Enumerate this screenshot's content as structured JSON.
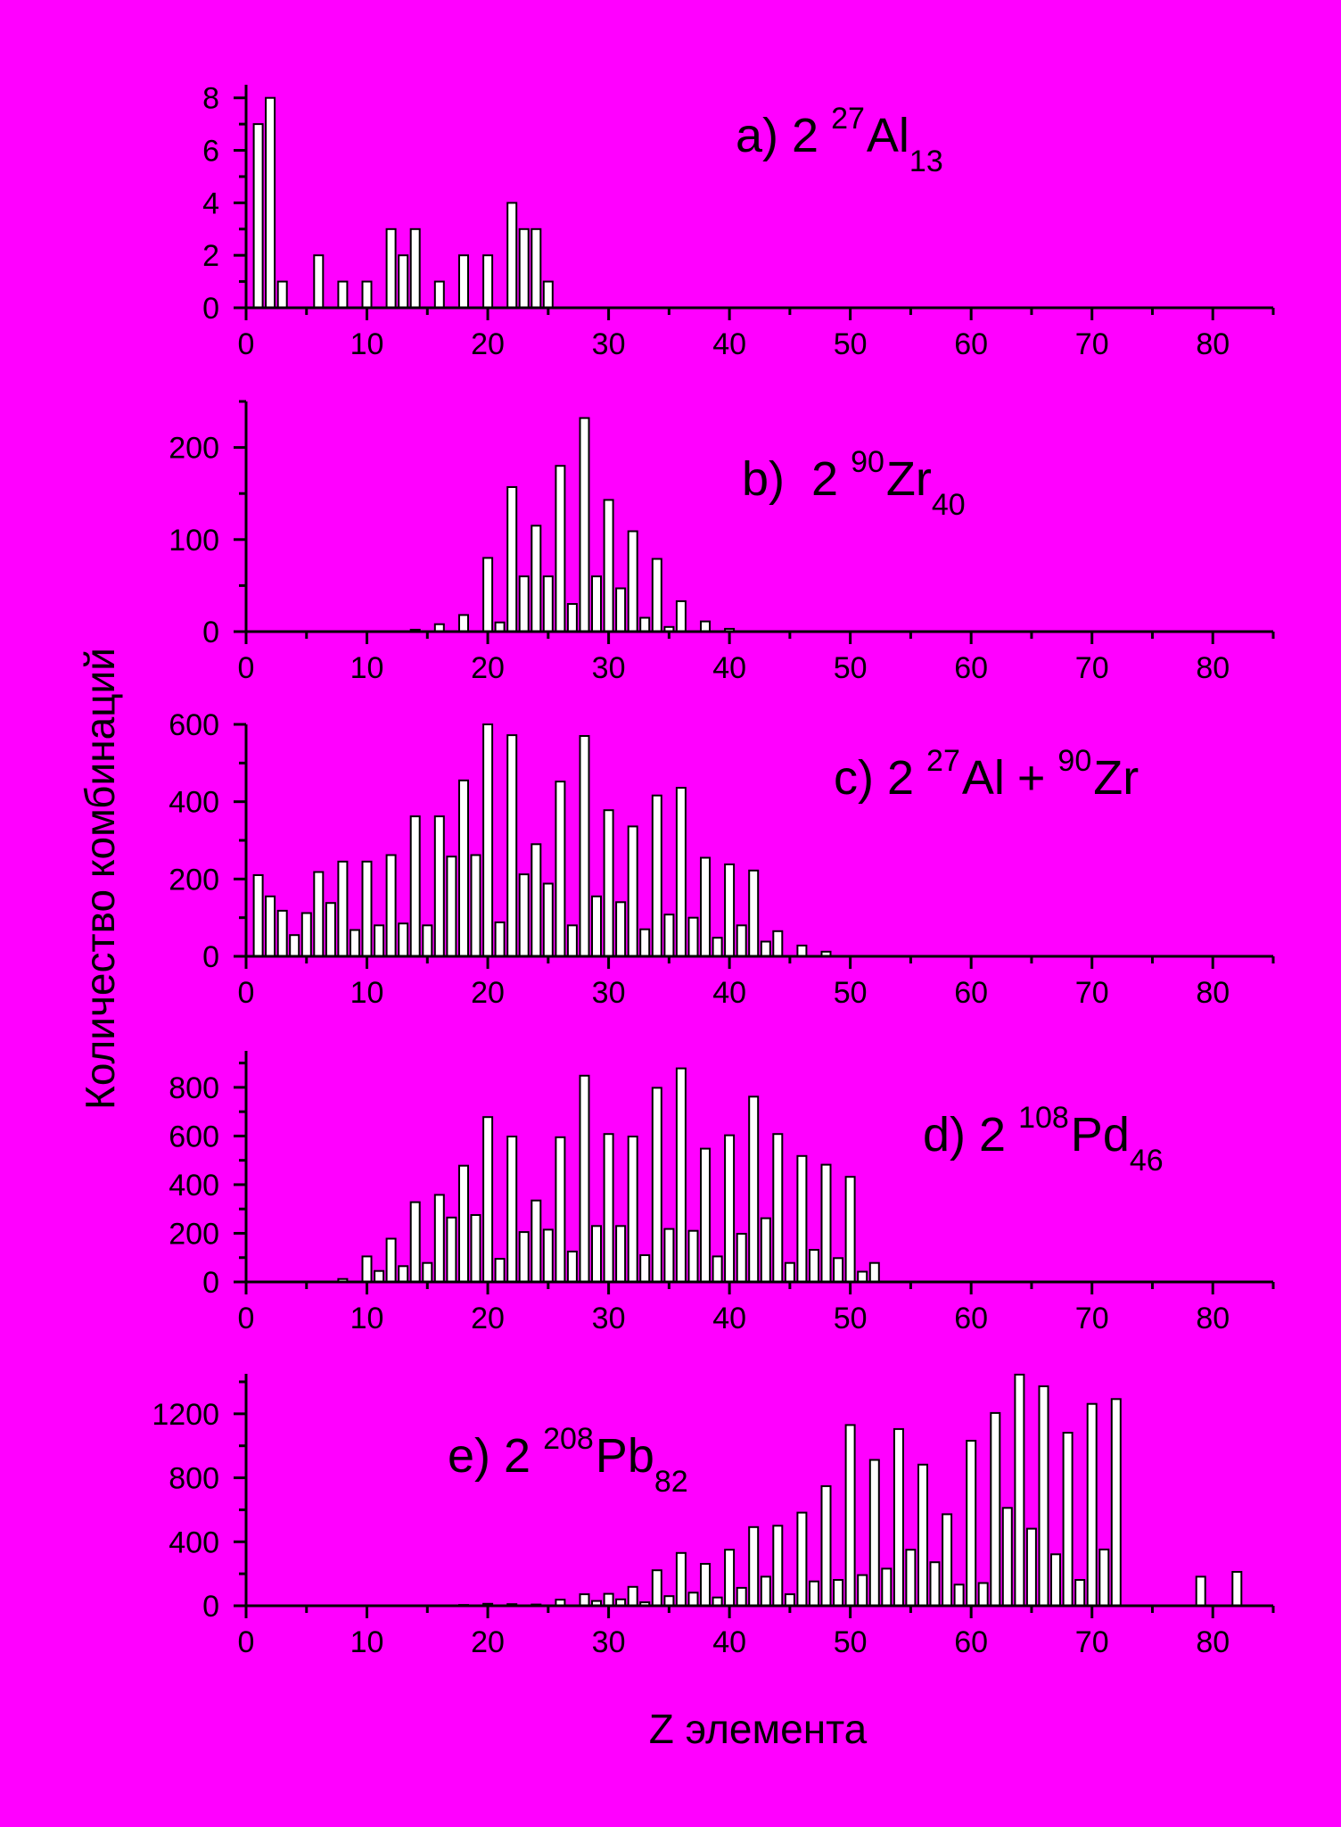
{
  "figure": {
    "background": "#FF00FF",
    "bar_fill": "#FFFFFF",
    "bar_stroke": "#000000",
    "ylabel": "Количество комбинаций",
    "xlabel": "Z элемента"
  },
  "chart_data": [
    {
      "id": "a",
      "type": "bar",
      "label": {
        "prefix": "a) 2",
        "mass": "27",
        "element": "Al",
        "charge": "13"
      },
      "xlim": [
        0,
        85
      ],
      "ylim": [
        0,
        8.5
      ],
      "xticks": [
        0,
        10,
        20,
        30,
        40,
        50,
        60,
        70,
        80
      ],
      "yticks": [
        0,
        2,
        4,
        6,
        8
      ],
      "x": [
        1,
        2,
        3,
        6,
        8,
        10,
        12,
        13,
        14,
        16,
        18,
        20,
        22,
        23,
        24,
        25
      ],
      "values": [
        7,
        8,
        1,
        2,
        1,
        1,
        3,
        2,
        3,
        1,
        2,
        2,
        4,
        3,
        3,
        1
      ]
    },
    {
      "id": "b",
      "type": "bar",
      "label": {
        "prefix": "b)  2",
        "mass": "90",
        "element": "Zr",
        "charge": "40"
      },
      "xlim": [
        0,
        85
      ],
      "ylim": [
        0,
        250
      ],
      "xticks": [
        0,
        10,
        20,
        30,
        40,
        50,
        60,
        70,
        80
      ],
      "yticks": [
        0,
        100,
        200
      ],
      "x": [
        14,
        16,
        18,
        20,
        21,
        22,
        23,
        24,
        25,
        26,
        27,
        28,
        29,
        30,
        31,
        32,
        33,
        34,
        35,
        36,
        38,
        40
      ],
      "values": [
        2,
        8,
        18,
        80,
        10,
        157,
        60,
        115,
        60,
        180,
        30,
        232,
        60,
        143,
        47,
        109,
        15,
        79,
        5,
        33,
        11,
        3
      ]
    },
    {
      "id": "c",
      "type": "bar",
      "label": {
        "prefix": "c) 2",
        "mass1": "27",
        "element1": "Al",
        "plus": "+",
        "mass2": "90",
        "element2": "Zr"
      },
      "xlim": [
        0,
        85
      ],
      "ylim": [
        0,
        600
      ],
      "xticks": [
        0,
        10,
        20,
        30,
        40,
        50,
        60,
        70,
        80
      ],
      "yticks": [
        0,
        200,
        400,
        600
      ],
      "x": [
        1,
        2,
        3,
        4,
        5,
        6,
        7,
        8,
        9,
        10,
        11,
        12,
        13,
        14,
        15,
        16,
        17,
        18,
        19,
        20,
        21,
        22,
        23,
        24,
        25,
        26,
        27,
        28,
        29,
        30,
        31,
        32,
        33,
        34,
        35,
        36,
        37,
        38,
        39,
        40,
        41,
        42,
        43,
        44,
        46,
        48
      ],
      "values": [
        210,
        155,
        118,
        55,
        112,
        218,
        138,
        245,
        68,
        245,
        80,
        262,
        85,
        362,
        80,
        362,
        258,
        455,
        262,
        600,
        88,
        572,
        212,
        290,
        188,
        452,
        80,
        570,
        155,
        378,
        140,
        336,
        70,
        416,
        108,
        436,
        100,
        255,
        48,
        238,
        80,
        222,
        38,
        65,
        28,
        12
      ]
    },
    {
      "id": "d",
      "type": "bar",
      "label": {
        "prefix": "d) 2",
        "mass": "108",
        "element": "Pd",
        "charge": "46"
      },
      "xlim": [
        0,
        85
      ],
      "ylim": [
        0,
        950
      ],
      "xticks": [
        0,
        10,
        20,
        30,
        40,
        50,
        60,
        70,
        80
      ],
      "yticks": [
        0,
        200,
        400,
        600,
        800
      ],
      "x": [
        8,
        10,
        11,
        12,
        13,
        14,
        15,
        16,
        17,
        18,
        19,
        20,
        21,
        22,
        23,
        24,
        25,
        26,
        27,
        28,
        29,
        30,
        31,
        32,
        33,
        34,
        35,
        36,
        37,
        38,
        39,
        40,
        41,
        42,
        43,
        44,
        45,
        46,
        47,
        48,
        49,
        50,
        51,
        52
      ],
      "values": [
        12,
        105,
        45,
        178,
        65,
        328,
        78,
        358,
        265,
        478,
        275,
        678,
        95,
        598,
        205,
        335,
        215,
        595,
        125,
        848,
        230,
        608,
        230,
        598,
        110,
        798,
        218,
        878,
        210,
        548,
        105,
        603,
        198,
        762,
        262,
        608,
        78,
        518,
        132,
        482,
        98,
        432,
        42,
        78
      ]
    },
    {
      "id": "e",
      "type": "bar",
      "label": {
        "prefix": "e) 2",
        "mass": "208",
        "element": "Pb",
        "charge": "82"
      },
      "xlim": [
        0,
        85
      ],
      "ylim": [
        0,
        1450
      ],
      "xticks": [
        0,
        10,
        20,
        30,
        40,
        50,
        60,
        70,
        80
      ],
      "yticks": [
        0,
        400,
        800,
        1200
      ],
      "x": [
        16,
        18,
        20,
        22,
        24,
        26,
        28,
        29,
        30,
        31,
        32,
        33,
        34,
        35,
        36,
        37,
        38,
        39,
        40,
        41,
        42,
        43,
        44,
        45,
        46,
        47,
        48,
        49,
        50,
        51,
        52,
        53,
        54,
        55,
        56,
        57,
        58,
        59,
        60,
        61,
        62,
        63,
        64,
        65,
        66,
        67,
        68,
        69,
        70,
        71,
        72,
        79,
        82
      ],
      "values": [
        3,
        5,
        12,
        10,
        8,
        38,
        72,
        30,
        75,
        40,
        118,
        22,
        222,
        60,
        330,
        82,
        262,
        52,
        350,
        112,
        492,
        182,
        500,
        72,
        582,
        152,
        748,
        162,
        1130,
        192,
        912,
        232,
        1105,
        350,
        882,
        272,
        572,
        132,
        1032,
        142,
        1205,
        612,
        1445,
        482,
        1372,
        322,
        1082,
        162,
        1262,
        352,
        1292,
        182,
        212
      ]
    }
  ]
}
